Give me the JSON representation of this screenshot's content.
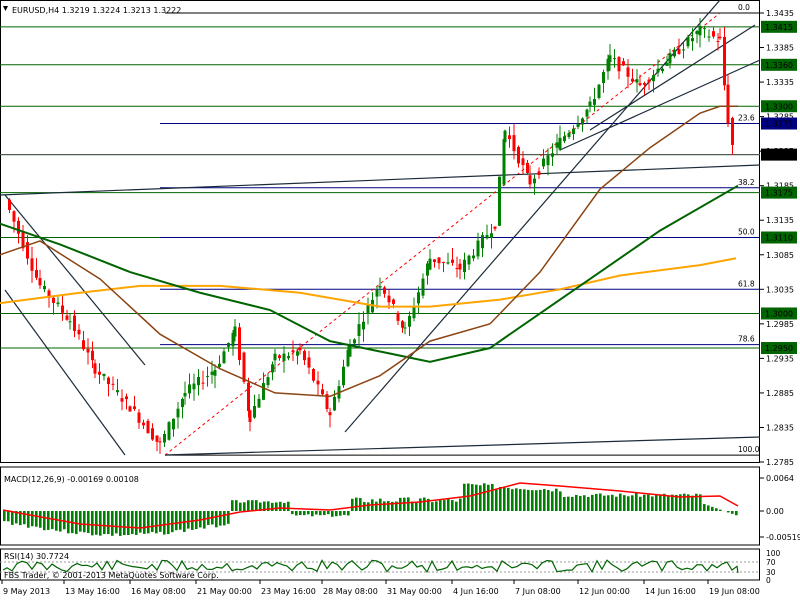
{
  "header": {
    "symbol": "EURUSD,H4",
    "ohlc": "1.3219 1.3224 1.3213 1.3222"
  },
  "price_axis": {
    "ticks": [
      "1.3435",
      "1.3385",
      "1.3335",
      "1.3285",
      "1.3235",
      "1.3185",
      "1.3135",
      "1.3085",
      "1.3035",
      "1.2985",
      "1.2935",
      "1.2885",
      "1.2835",
      "1.2785"
    ],
    "level_labels": [
      {
        "text": "1.3415",
        "bg": "#006400"
      },
      {
        "text": "1.3360",
        "bg": "#006400"
      },
      {
        "text": "1.3300",
        "bg": "#006400"
      },
      {
        "text": "1.3275",
        "bg": "#000080"
      },
      {
        "text": "1.3230",
        "bg": "#000000"
      },
      {
        "text": "1.3175",
        "bg": "#006400"
      },
      {
        "text": "1.3110",
        "bg": "#006400"
      },
      {
        "text": "1.3000",
        "bg": "#006400"
      },
      {
        "text": "1.2950",
        "bg": "#006400"
      }
    ]
  },
  "fibo_labels": [
    "0.0",
    "23.6",
    "38.2",
    "50.0",
    "61.8",
    "78.6",
    "100.0"
  ],
  "macd": {
    "label": "MACD(12,26,9) -0.00169 0.00108",
    "ticks": [
      "0.0064",
      "0.00",
      "-0.00519"
    ]
  },
  "rsi": {
    "label": "RSI(14) 30.7724",
    "ticks": [
      "100",
      "70",
      "30",
      "0"
    ]
  },
  "copyright": "FBS Trader, © 2001-2013 MetaQuotes Software Corp.",
  "time_axis": [
    "9 May 2013",
    "13 May 16:00",
    "16 May 08:00",
    "21 May 00:00",
    "23 May 16:00",
    "28 May 08:00",
    "31 May 00:00",
    "4 Jun 16:00",
    "7 Jun 08:00",
    "12 Jun 00:00",
    "14 Jun 16:00",
    "19 Jun 08:00"
  ],
  "colors": {
    "bull": "#008000",
    "bear": "#ff0000",
    "ma_fast": "#8b4513",
    "ma_mid": "#006400",
    "ma_slow": "#ffa500",
    "fibo": "#ff0000",
    "trend": "#1c2b3a"
  }
}
